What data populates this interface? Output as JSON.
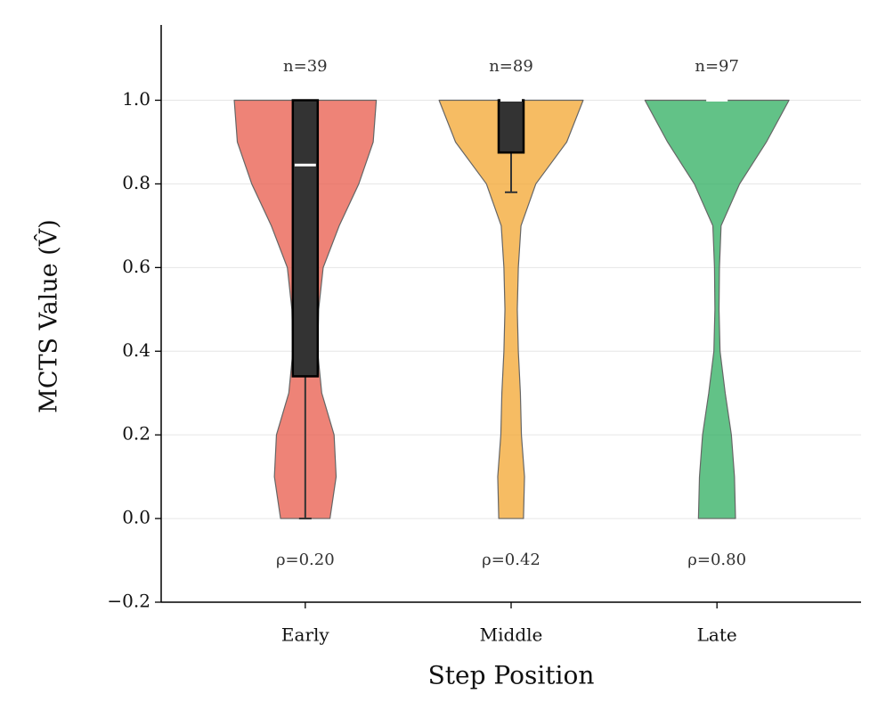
{
  "chart_data": {
    "type": "violin",
    "x_label": "Step Position",
    "y_label": "MCTS Value (V̂)",
    "categories": [
      "Early",
      "Middle",
      "Late"
    ],
    "xlim": [
      -0.7,
      2.7
    ],
    "ylim": [
      -0.2,
      1.18
    ],
    "yticks": [
      {
        "value": -0.2,
        "label": "−0.2"
      },
      {
        "value": 0,
        "label": "0.0"
      },
      0.2,
      0.4,
      0.6,
      0.8,
      {
        "value": 1,
        "label": "1.0"
      }
    ],
    "grid": true,
    "violin_y": [
      0,
      0.1,
      0.2,
      0.3,
      0.4,
      0.5,
      0.6,
      0.7,
      0.8,
      0.9,
      1.0
    ],
    "series": [
      {
        "name": "Early",
        "color": "#e8594a",
        "widths": [
          0.12,
          0.15,
          0.14,
          0.08,
          0.06,
          0.065,
          0.087,
          0.165,
          0.26,
          0.33,
          0.345
        ],
        "box": {
          "whislo": 0,
          "q1": 0.34,
          "med": 0.845,
          "q3": 1.0,
          "whishi": 1.0
        },
        "n_label": "n=39",
        "rho_label": "ρ=0.20"
      },
      {
        "name": "Middle",
        "color": "#f3a52f",
        "widths": [
          0.06,
          0.065,
          0.05,
          0.045,
          0.035,
          0.03,
          0.035,
          0.048,
          0.12,
          0.27,
          0.35
        ],
        "box": {
          "whislo": 0.78,
          "q1": 0.875,
          "med": 1.0,
          "q3": 1.0,
          "whishi": 1.0
        },
        "n_label": "n=89",
        "rho_label": "ρ=0.42"
      },
      {
        "name": "Late",
        "color": "#2ead5f",
        "widths": [
          0.09,
          0.085,
          0.07,
          0.04,
          0.015,
          0.01,
          0.012,
          0.02,
          0.11,
          0.24,
          0.35
        ],
        "box": {
          "whislo": 1.0,
          "q1": 1.0,
          "med": 1.0,
          "q3": 1.0,
          "whishi": 1.0
        },
        "n_label": "n=97",
        "rho_label": "ρ=0.80"
      }
    ],
    "n_label_y": 1.08,
    "rho_label_y": -0.1
  }
}
